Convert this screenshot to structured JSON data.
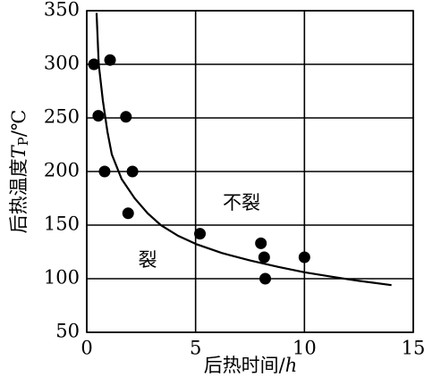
{
  "chart_data": {
    "type": "scatter",
    "xlabel": [
      "后热时间/",
      "h"
    ],
    "ylabel": [
      "后热温度",
      "T",
      "P",
      "/℃"
    ],
    "xlim": [
      0,
      15
    ],
    "xticks": [
      0,
      5,
      10,
      15
    ],
    "ylim": [
      50,
      350
    ],
    "yticks": [
      50,
      100,
      150,
      200,
      250,
      300,
      350
    ],
    "grid": true,
    "color": "#000000",
    "points": {
      "x": [
        0.33,
        1.07,
        0.53,
        1.8,
        0.82,
        2.1,
        1.9,
        5.2,
        8.0,
        8.15,
        10.0,
        8.2
      ],
      "y": [
        300,
        304,
        252,
        251,
        200,
        200,
        161,
        142,
        133,
        120,
        120,
        100
      ]
    },
    "curve": {
      "x": [
        0.45,
        0.55,
        0.74,
        0.95,
        1.15,
        1.6,
        2.2,
        2.8,
        3.4,
        4.2,
        5.06,
        6.2,
        7.5,
        8.8,
        10,
        11.2,
        12.5,
        14
      ],
      "y": [
        348,
        300,
        266,
        237,
        216,
        193,
        175,
        161,
        150,
        140,
        132,
        124,
        117,
        111,
        106,
        102,
        98,
        94
      ]
    },
    "annotations": [
      "不裂",
      "裂"
    ]
  }
}
